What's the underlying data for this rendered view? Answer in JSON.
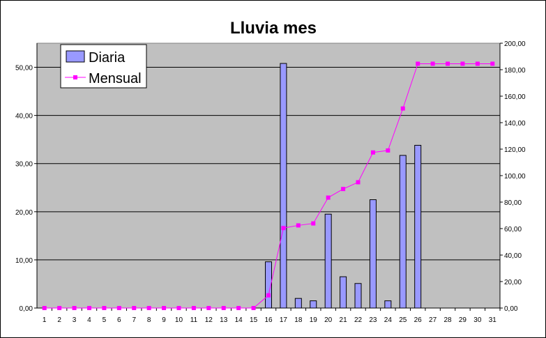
{
  "chart_data": {
    "type": "bar",
    "title": "Lluvia mes",
    "xlabel": "",
    "ylabel": "",
    "categories": [
      "1",
      "2",
      "3",
      "4",
      "5",
      "6",
      "7",
      "8",
      "9",
      "10",
      "11",
      "12",
      "13",
      "14",
      "15",
      "16",
      "17",
      "18",
      "19",
      "20",
      "21",
      "22",
      "23",
      "24",
      "25",
      "26",
      "27",
      "28",
      "29",
      "30",
      "31"
    ],
    "y_left": {
      "ylim": [
        0,
        55
      ],
      "ticks": [
        0,
        10,
        20,
        30,
        40,
        50
      ],
      "tick_labels": [
        "0,00",
        "10,00",
        "20,00",
        "30,00",
        "40,00",
        "50,00"
      ]
    },
    "y_right": {
      "ylim": [
        0,
        200
      ],
      "ticks": [
        0,
        20,
        40,
        60,
        80,
        100,
        120,
        140,
        160,
        180,
        200
      ],
      "tick_labels": [
        "0,00",
        "20,00",
        "40,00",
        "60,00",
        "80,00",
        "100,00",
        "120,00",
        "140,00",
        "160,00",
        "180,00",
        "200,00"
      ]
    },
    "series": [
      {
        "name": "Diaria",
        "type": "bar",
        "axis": "left",
        "color": "#9999FF",
        "values": [
          0,
          0,
          0,
          0,
          0,
          0,
          0,
          0,
          0,
          0,
          0,
          0,
          0,
          0,
          0,
          9.6,
          50.8,
          2.0,
          1.5,
          19.5,
          6.5,
          5.1,
          22.5,
          1.5,
          31.7,
          33.8,
          0,
          0,
          0,
          0,
          0
        ]
      },
      {
        "name": "Mensual",
        "type": "line",
        "axis": "right",
        "color": "#FF00FF",
        "values": [
          0,
          0,
          0,
          0,
          0,
          0,
          0,
          0,
          0,
          0,
          0,
          0,
          0,
          0,
          0,
          9.6,
          60.4,
          62.4,
          63.9,
          83.4,
          89.9,
          95.0,
          117.5,
          119.0,
          150.7,
          184.5,
          184.5,
          184.5,
          184.5,
          184.5,
          184.5
        ]
      }
    ],
    "grid": true,
    "legend_position": "top-left",
    "plot_background": "#C0C0C0"
  }
}
